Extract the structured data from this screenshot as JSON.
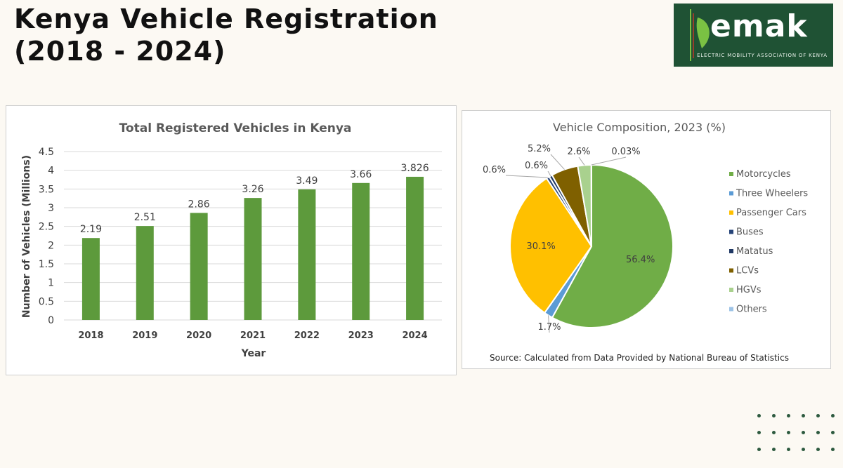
{
  "page": {
    "title_line1": "Kenya Vehicle Registration",
    "title_line2": "(2018 - 2024)"
  },
  "logo": {
    "text": "emak",
    "subtitle": "ELECTRIC MOBILITY ASSOCIATION OF KENYA",
    "colors": {
      "background": "#1f5234",
      "accent": "#7ac143"
    }
  },
  "chart_data": [
    {
      "type": "bar",
      "title": "Total Registered Vehicles  in Kenya",
      "xlabel": "Year",
      "ylabel": "Number of Vehicles (Millions)",
      "categories": [
        "2018",
        "2019",
        "2020",
        "2021",
        "2022",
        "2023",
        "2024"
      ],
      "values": [
        2.19,
        2.51,
        2.86,
        3.26,
        3.49,
        3.66,
        3.826
      ],
      "data_labels": [
        "2.19",
        "2.51",
        "2.86",
        "3.26",
        "3.49",
        "3.66",
        "3.826"
      ],
      "ylim": [
        0,
        4.5
      ],
      "yticks": [
        "0",
        "0.5",
        "1",
        "1.5",
        "2",
        "2.5",
        "3",
        "3.5",
        "4",
        "4.5"
      ],
      "grid": true,
      "color": "#5d9a3c"
    },
    {
      "type": "pie",
      "title": "Vehicle Composition, 2023 (%)",
      "source": "Source: Calculated from Data Provided by National Bureau of Statistics",
      "legend_position": "right",
      "slices": [
        {
          "label": "Motorcycles",
          "value": 56.4,
          "value_label": "56.4%",
          "color": "#70ad47"
        },
        {
          "label": "Three Wheelers",
          "value": 1.7,
          "value_label": "1.7%",
          "color": "#5b9bd5"
        },
        {
          "label": "Passenger Cars",
          "value": 30.1,
          "value_label": "30.1%",
          "color": "#ffc000"
        },
        {
          "label": "Buses",
          "value": 0.6,
          "value_label": "0.6%",
          "color": "#264478"
        },
        {
          "label": "Matatus",
          "value": 0.6,
          "value_label": "0.6%",
          "color": "#1f3864"
        },
        {
          "label": "LCVs",
          "value": 5.2,
          "value_label": "5.2%",
          "color": "#7f6000"
        },
        {
          "label": "HGVs",
          "value": 2.6,
          "value_label": "2.6%",
          "color": "#a9d18e"
        },
        {
          "label": "Others",
          "value": 0.03,
          "value_label": "0.03%",
          "color": "#9dc3e6"
        }
      ]
    }
  ]
}
